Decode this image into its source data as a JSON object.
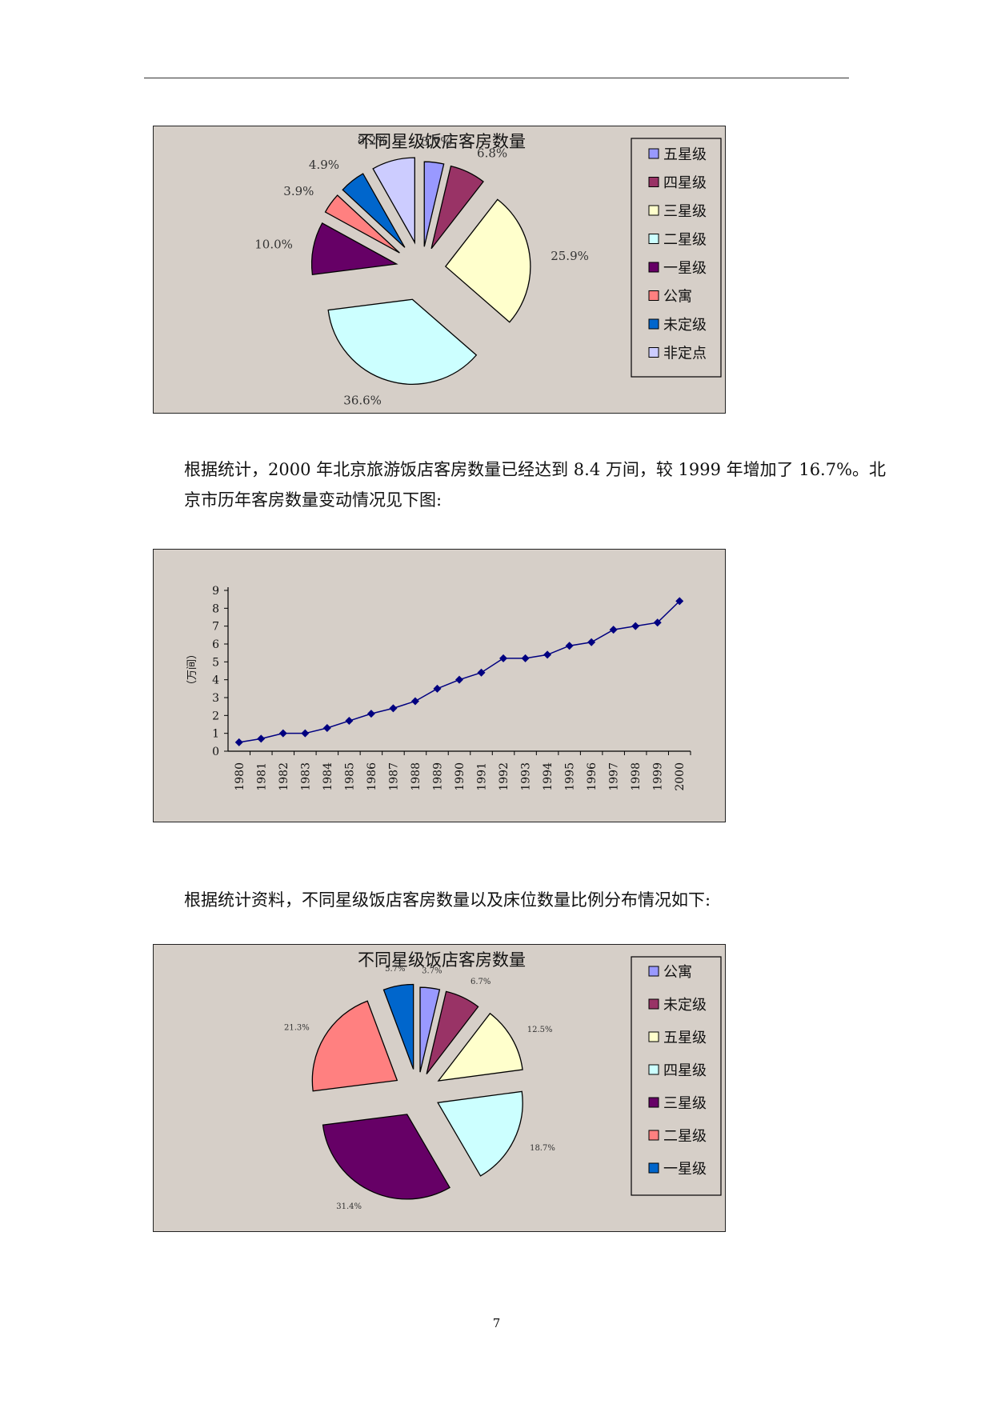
{
  "pie_chart_1": {
    "chart_data": {
      "type": "pie",
      "title": "不同星级饭店客房数量",
      "categories": [
        "五星级",
        "四星级",
        "三星级",
        "二星级",
        "一星级",
        "公寓",
        "未定级",
        "非定点"
      ],
      "values": [
        3.7,
        6.8,
        25.9,
        36.6,
        10.0,
        3.9,
        4.9,
        8.2
      ],
      "value_labels": [
        "3.7%",
        "6.8%",
        "25.9%",
        "36.6%",
        "10.0%",
        "3.9%",
        "4.9%",
        "8.2%"
      ],
      "legend_position": "right",
      "colors": [
        "#9999ff",
        "#993366",
        "#ffffcc",
        "#ccffff",
        "#660066",
        "#ff8080",
        "#0066cc",
        "#ccccff"
      ]
    }
  },
  "paragraph_1": "根据统计，2000 年北京旅游饭店客房数量已经达到 8.4 万间，较 1999 年增加了 16.7%。北京市历年客房数量变动情况见下图:",
  "line_chart": {
    "chart_data": {
      "type": "line",
      "ylabel": "（万间）",
      "x": [
        "1980",
        "1981",
        "1982",
        "1983",
        "1984",
        "1985",
        "1986",
        "1987",
        "1988",
        "1989",
        "1990",
        "1991",
        "1992",
        "1993",
        "1994",
        "1995",
        "1996",
        "1997",
        "1998",
        "1999",
        "2000"
      ],
      "series": [
        {
          "values": [
            0.5,
            0.7,
            1.0,
            1.0,
            1.3,
            1.7,
            2.1,
            2.4,
            2.8,
            3.5,
            4.0,
            4.4,
            5.2,
            5.2,
            5.4,
            5.9,
            6.1,
            6.8,
            7.0,
            7.2,
            8.4
          ]
        }
      ],
      "ylim": [
        0,
        9
      ],
      "yticks": [
        "0",
        "1",
        "2",
        "3",
        "4",
        "5",
        "6",
        "7",
        "8",
        "9"
      ],
      "grid": false,
      "color": "#000080"
    }
  },
  "paragraph_2": "根据统计资料，不同星级饭店客房数量以及床位数量比例分布情况如下:",
  "pie_chart_2": {
    "chart_data": {
      "type": "pie",
      "title": "不同星级饭店客房数量",
      "categories": [
        "公寓",
        "未定级",
        "五星级",
        "四星级",
        "三星级",
        "二星级",
        "一星级"
      ],
      "values": [
        3.7,
        6.7,
        12.5,
        18.7,
        31.4,
        21.3,
        5.7
      ],
      "value_labels": [
        "3.7%",
        "6.7%",
        "12.5%",
        "18.7%",
        "31.4%",
        "21.3%",
        "5.7%"
      ],
      "legend_position": "right",
      "colors": [
        "#9999ff",
        "#993366",
        "#ffffcc",
        "#ccffff",
        "#660066",
        "#ff8080",
        "#0066cc"
      ]
    }
  },
  "page_number": "7"
}
